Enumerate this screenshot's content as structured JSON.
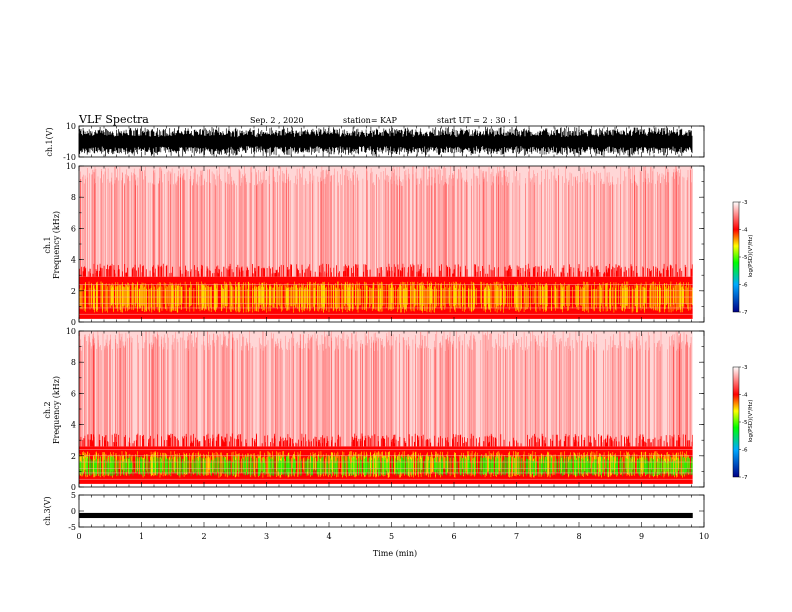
{
  "header": {
    "title": "VLF Spectra",
    "date": "Sep. 2  , 2020",
    "station": "station= KAP",
    "start": "start  UT  =   2  : 30 : 1"
  },
  "chart_data": [
    {
      "type": "line",
      "ylabel": "ch.1(V)",
      "ylim": [
        -10,
        10
      ],
      "y_ticks": [
        "10",
        "-10"
      ],
      "xlim": [
        0,
        10
      ]
    },
    {
      "type": "heatmap",
      "ylabel": "ch.1\nFrequency (kHz)",
      "ylabel_line1": "ch.1",
      "ylabel_line2": "Frequency  (kHz)",
      "ylim": [
        0,
        10
      ],
      "y_ticks": [
        "0",
        "2",
        "4",
        "6",
        "8",
        "10"
      ],
      "xlim": [
        0,
        10
      ],
      "colorbar": {
        "label": "log(PSD)(V²/Hz)",
        "ticks": [
          "-3",
          "-4",
          "-5",
          "-6",
          "-7"
        ],
        "range": [
          -7,
          -3
        ]
      }
    },
    {
      "type": "heatmap",
      "ylabel_line1": "ch.2",
      "ylabel_line2": "Frequency  (kHz)",
      "ylim": [
        0,
        10
      ],
      "y_ticks": [
        "0",
        "2",
        "4",
        "6",
        "8",
        "10"
      ],
      "xlim": [
        0,
        10
      ],
      "colorbar": {
        "label": "log(PSD)(V²/Hz)",
        "ticks": [
          "-3",
          "-4",
          "-5",
          "-6",
          "-7"
        ],
        "range": [
          -7,
          -3
        ]
      }
    },
    {
      "type": "line",
      "ylabel": "ch.3(V)",
      "ylim": [
        -5,
        5
      ],
      "y_ticks": [
        "5",
        "0",
        "-5"
      ],
      "xlim": [
        0,
        10
      ]
    }
  ],
  "x_axis": {
    "label": "Time  (min)",
    "ticks": [
      "0",
      "1",
      "2",
      "3",
      "4",
      "5",
      "6",
      "7",
      "8",
      "9",
      "10"
    ]
  },
  "colors": {
    "spec_bg": "#ffffff",
    "red": "#ff0000",
    "yellow": "#ffff00",
    "green": "#00ff00"
  }
}
